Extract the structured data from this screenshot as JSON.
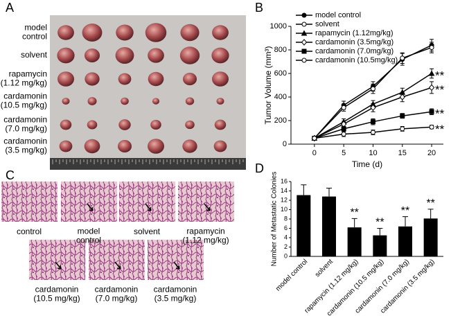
{
  "panel_labels": [
    "A",
    "B",
    "C",
    "D"
  ],
  "panel_a": {
    "row_labels": [
      [
        "model",
        "control"
      ],
      [
        "solvent"
      ],
      [
        "rapamycin",
        "(1.12 mg/kg)"
      ],
      [
        "cardamonin",
        "(10.5 mg/kg)"
      ],
      [
        "cardamonin",
        "(7.0 mg/kg)"
      ],
      [
        "cardamonin",
        "(3.5 mg/kg)"
      ]
    ]
  },
  "panel_c": {
    "labels": [
      [
        "control"
      ],
      [
        "model",
        "control"
      ],
      [
        "solvent"
      ],
      [
        "rapamycin",
        "(1.12 mg/kg)"
      ],
      [
        "cardamonin",
        "(10.5 mg/kg)"
      ],
      [
        "cardamonin",
        "(7.0 mg/kg)"
      ],
      [
        "cardamonin",
        "(3.5 mg/kg)"
      ]
    ]
  },
  "chart_data": [
    {
      "type": "line",
      "x_label": "Time (d)",
      "y_label": "Tumor Volume (mm³)",
      "x": [
        0,
        5,
        10,
        15,
        20
      ],
      "xlim": [
        -4,
        22
      ],
      "xticks": [
        0,
        5,
        10,
        15,
        20
      ],
      "ylim": [
        0,
        1000
      ],
      "yticks": [
        0,
        200,
        400,
        600,
        800,
        1000
      ],
      "series": [
        {
          "name": "model control",
          "color": "#000000",
          "marker": "filled-circle",
          "values": [
            50,
            330,
            490,
            720,
            840
          ],
          "errors": [
            15,
            35,
            40,
            50,
            50
          ]
        },
        {
          "name": "solvent",
          "color": "#000000",
          "marker": "open-circle",
          "values": [
            50,
            310,
            470,
            730,
            820
          ],
          "errors": [
            15,
            30,
            40,
            45,
            45
          ]
        },
        {
          "name": "rapamycin (1.12mg/kg)",
          "color": "#000000",
          "marker": "filled-triangle",
          "values": [
            50,
            190,
            340,
            440,
            600
          ],
          "errors": [
            15,
            25,
            30,
            35,
            40
          ]
        },
        {
          "name": "cardamonin (3.5mg/kg)",
          "color": "#000000",
          "marker": "open-diamond",
          "values": [
            50,
            170,
            310,
            400,
            480
          ],
          "errors": [
            15,
            25,
            35,
            40,
            50
          ]
        },
        {
          "name": "cardamonin (7.0mg/kg)",
          "color": "#000000",
          "marker": "filled-square",
          "values": [
            50,
            130,
            190,
            240,
            275
          ],
          "errors": [
            15,
            20,
            25,
            20,
            25
          ]
        },
        {
          "name": "cardamonin (10.5mg/kg)",
          "color": "#000000",
          "marker": "open-circle",
          "values": [
            50,
            85,
            100,
            130,
            145
          ],
          "errors": [
            15,
            20,
            20,
            20,
            15
          ]
        }
      ],
      "annotations": [
        "**",
        "**",
        "**",
        "**"
      ]
    },
    {
      "type": "bar",
      "y_label": "Number of Metastatic Colonies",
      "color": "#000000",
      "categories": [
        "model control",
        "solvent",
        "rapamycin (1.12 mg/kg)",
        "cardamonin (10.5 mg/kg)",
        "cardamonin (7.0 mg/kg)",
        "cardamonin (3.5 mg/kg)"
      ],
      "values": [
        13.1,
        12.8,
        6.2,
        4.5,
        6.4,
        8.1
      ],
      "errors": [
        2.2,
        1.8,
        1.9,
        1.5,
        2.1,
        2.0
      ],
      "ylim": [
        0,
        16
      ],
      "yticks": [
        0,
        2,
        4,
        6,
        8,
        10,
        12,
        14,
        16
      ],
      "annotations": [
        "**",
        "**",
        "**",
        "**"
      ]
    }
  ]
}
